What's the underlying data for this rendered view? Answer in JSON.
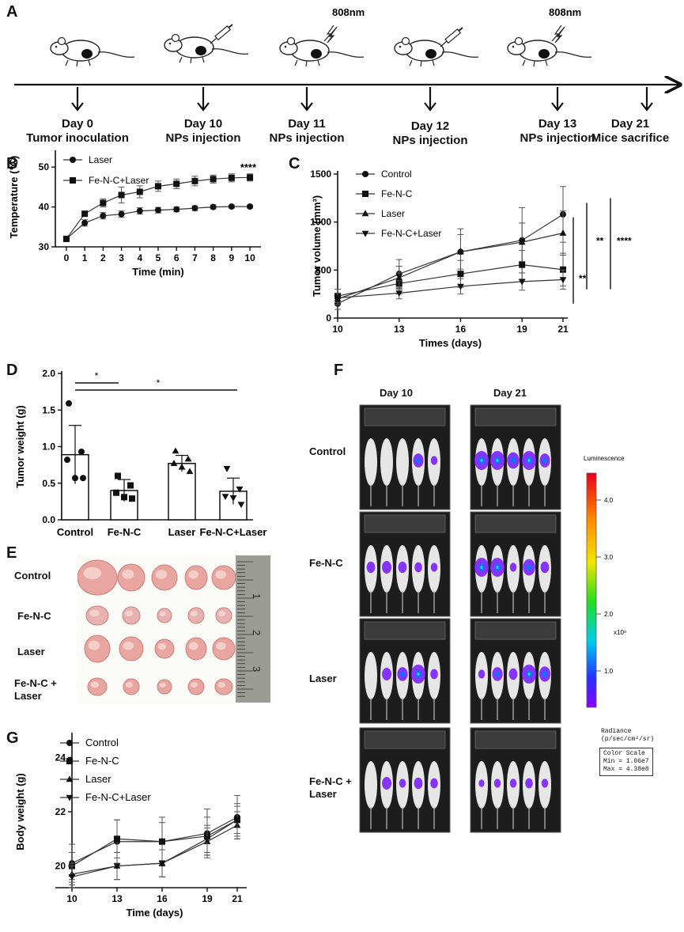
{
  "panels": {
    "A": "A",
    "B": "B",
    "C": "C",
    "D": "D",
    "E": "E",
    "F": "F",
    "G": "G"
  },
  "timeline": {
    "laser_label": "808nm",
    "events": [
      {
        "day": "Day 0",
        "desc": "Tumor inoculation"
      },
      {
        "day": "Day 10",
        "desc": "NPs injection"
      },
      {
        "day": "Day 11",
        "desc": "NPs injection"
      },
      {
        "day": "Day 12",
        "desc": "NPs injection"
      },
      {
        "day": "Day 13",
        "desc": "NPs injection"
      },
      {
        "day": "Day 21",
        "desc": "Mice sacrifice"
      }
    ]
  },
  "chart_data": [
    {
      "id": "B",
      "type": "line",
      "title": "",
      "xlabel": "Time (min)",
      "ylabel": "Temperature (℃)",
      "x": [
        0,
        1,
        2,
        3,
        4,
        5,
        6,
        7,
        8,
        9,
        10
      ],
      "xticks": [
        "0",
        "1",
        "2",
        "3",
        "4",
        "5",
        "6",
        "7",
        "8",
        "9",
        "10"
      ],
      "yticks": [
        "30",
        "40",
        "50"
      ],
      "xlim": [
        -0.6,
        10.6
      ],
      "ylim": [
        30,
        55
      ],
      "series": [
        {
          "name": "Laser",
          "marker": "circle",
          "values": [
            32,
            36,
            37.8,
            38.2,
            39,
            39.2,
            39.4,
            39.7,
            40,
            40.1,
            40.1
          ],
          "errors": [
            0.4,
            0.8,
            0.8,
            0.8,
            0.8,
            0.7,
            0.6,
            0.6,
            0.5,
            0.4,
            0.4
          ]
        },
        {
          "name": "Fe-N-C+Laser",
          "marker": "square",
          "values": [
            32,
            38.3,
            41,
            43,
            43.8,
            45.2,
            45.8,
            46.5,
            47,
            47.3,
            47.4
          ],
          "errors": [
            0.4,
            0.6,
            1,
            2,
            1.5,
            1.3,
            1.2,
            1.2,
            1,
            1,
            0.9
          ]
        }
      ],
      "annotations": [
        "****"
      ]
    },
    {
      "id": "C",
      "type": "line",
      "title": "",
      "xlabel": "Times (days)",
      "ylabel": "Tumor volume (mm³)",
      "x": [
        10,
        13,
        16,
        19,
        21
      ],
      "xticks": [
        "10",
        "13",
        "16",
        "19",
        "21"
      ],
      "yticks": [
        "0",
        "500",
        "1000",
        "1500"
      ],
      "xlim": [
        10,
        21
      ],
      "ylim": [
        0,
        1500
      ],
      "series": [
        {
          "name": "Control",
          "marker": "circle",
          "values": [
            150,
            460,
            690,
            810,
            1080
          ],
          "errors": [
            60,
            150,
            240,
            340,
            290
          ]
        },
        {
          "name": "Fe-N-C",
          "marker": "square",
          "values": [
            230,
            360,
            460,
            555,
            505
          ],
          "errors": [
            70,
            110,
            140,
            150,
            170
          ]
        },
        {
          "name": "Laser",
          "marker": "triangle",
          "values": [
            200,
            420,
            690,
            790,
            885
          ],
          "errors": [
            60,
            120,
            180,
            200,
            230
          ]
        },
        {
          "name": "Fe-N-C+Laser",
          "marker": "triangle-down",
          "values": [
            210,
            260,
            330,
            380,
            400
          ],
          "errors": [
            50,
            60,
            80,
            90,
            100
          ]
        }
      ],
      "significance": [
        "**",
        "**",
        "****"
      ]
    },
    {
      "id": "D",
      "type": "bar",
      "title": "",
      "xlabel": "",
      "ylabel": "Tumor weight (g)",
      "categories": [
        "Control",
        "Fe-N-C",
        "Laser",
        "Fe-N-C+Laser"
      ],
      "values": [
        0.89,
        0.4,
        0.77,
        0.39
      ],
      "errors": [
        0.4,
        0.15,
        0.11,
        0.18
      ],
      "points": [
        [
          1.59,
          0.93,
          0.82,
          0.57,
          0.57
        ],
        [
          0.6,
          0.47,
          0.37,
          0.31,
          0.29
        ],
        [
          0.94,
          0.83,
          0.77,
          0.72,
          0.66
        ],
        [
          0.7,
          0.42,
          0.32,
          0.3,
          0.21
        ]
      ],
      "markers": [
        "circle",
        "square",
        "triangle",
        "triangle-down"
      ],
      "yticks": [
        "0.0",
        "0.5",
        "1.0",
        "1.5",
        "2.0"
      ],
      "ylim": [
        0,
        2.0
      ],
      "significance": [
        "*",
        "*"
      ]
    },
    {
      "id": "G",
      "type": "line",
      "title": "",
      "xlabel": "Time (days)",
      "ylabel": "Body weight (g)",
      "x": [
        10,
        13,
        16,
        19,
        21
      ],
      "xticks": [
        "10",
        "13",
        "16",
        "19",
        "21"
      ],
      "yticks": [
        "20",
        "22",
        "24"
      ],
      "xlim": [
        10,
        21
      ],
      "ylim": [
        19.2,
        24.8
      ],
      "series": [
        {
          "name": "Control",
          "marker": "circle",
          "values": [
            20.1,
            20.9,
            20.9,
            21.2,
            21.8
          ],
          "errors": [
            0.7,
            0.8,
            0.9,
            0.9,
            0.8
          ]
        },
        {
          "name": "Fe-N-C",
          "marker": "square",
          "values": [
            20,
            21,
            20.9,
            21.1,
            21.7
          ],
          "errors": [
            0.5,
            0.7,
            0.7,
            0.7,
            0.6
          ]
        },
        {
          "name": "Laser",
          "marker": "triangle",
          "values": [
            19.7,
            20,
            20.1,
            20.9,
            21.5
          ],
          "errors": [
            0.4,
            0.5,
            0.5,
            0.5,
            0.5
          ]
        },
        {
          "name": "Fe-N-C+Laser",
          "marker": "triangle-down",
          "values": [
            19.6,
            20,
            20.1,
            21,
            21.7
          ],
          "errors": [
            0.4,
            0.5,
            0.5,
            0.5,
            0.5
          ]
        }
      ]
    }
  ],
  "panel_e": {
    "rows": [
      "Control",
      "Fe-N-C",
      "Laser",
      "Fe-N-C +\nLaser"
    ],
    "ruler": [
      "1",
      "2",
      "3"
    ]
  },
  "panel_f": {
    "columns": [
      "Day 10",
      "Day 21"
    ],
    "rows": [
      "Control",
      "Fe-N-C",
      "Laser",
      "Fe-N-C +\nLaser"
    ],
    "scale": {
      "title": "Luminescence",
      "ticks": [
        "4.0",
        "3.0",
        "2.0",
        "1.0"
      ],
      "unit": "x10⁸",
      "radiance": "Radiance\n(p/sec/cm²/sr)",
      "color_scale": "Color Scale",
      "min": "Min = 1.06e7",
      "max": "Max = 4.38e8"
    }
  }
}
